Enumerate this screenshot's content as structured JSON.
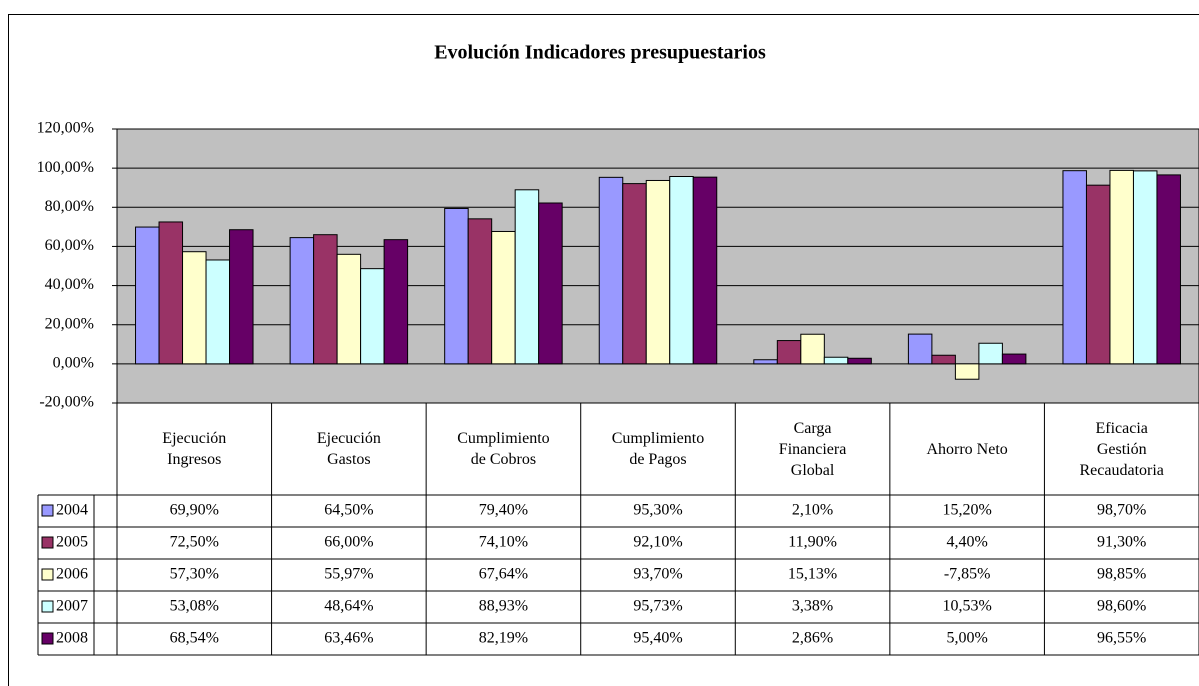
{
  "chart_data": {
    "type": "bar",
    "title": "Evolución Indicadores presupuestarios",
    "categories": [
      "Ejecución\nIngresos",
      "Ejecución\nGastos",
      "Cumplimiento\nde Cobros",
      "Cumplimiento\nde Pagos",
      "Carga\nFinanciera\nGlobal",
      "Ahorro Neto",
      "Eficacia\nGestión\nRecaudatoria"
    ],
    "series": [
      {
        "name": "2004",
        "color": "#9999ff",
        "values": [
          69.9,
          64.5,
          79.4,
          95.3,
          2.1,
          15.2,
          98.7
        ],
        "value_labels": [
          "69,90%",
          "64,50%",
          "79,40%",
          "95,30%",
          "2,10%",
          "15,20%",
          "98,70%"
        ]
      },
      {
        "name": "2005",
        "color": "#993366",
        "values": [
          72.5,
          66.0,
          74.1,
          92.1,
          11.9,
          4.4,
          91.3
        ],
        "value_labels": [
          "72,50%",
          "66,00%",
          "74,10%",
          "92,10%",
          "11,90%",
          "4,40%",
          "91,30%"
        ]
      },
      {
        "name": "2006",
        "color": "#ffffcc",
        "values": [
          57.3,
          55.97,
          67.64,
          93.7,
          15.13,
          -7.85,
          98.85
        ],
        "value_labels": [
          "57,30%",
          "55,97%",
          "67,64%",
          "93,70%",
          "15,13%",
          "-7,85%",
          "98,85%"
        ]
      },
      {
        "name": "2007",
        "color": "#ccffff",
        "values": [
          53.08,
          48.64,
          88.93,
          95.73,
          3.38,
          10.53,
          98.6
        ],
        "value_labels": [
          "53,08%",
          "48,64%",
          "88,93%",
          "95,73%",
          "3,38%",
          "10,53%",
          "98,60%"
        ]
      },
      {
        "name": "2008",
        "color": "#660066",
        "values": [
          68.54,
          63.46,
          82.19,
          95.4,
          2.86,
          5.0,
          96.55
        ],
        "value_labels": [
          "68,54%",
          "63,46%",
          "82,19%",
          "95,40%",
          "2,86%",
          "5,00%",
          "96,55%"
        ]
      }
    ],
    "ylim": [
      -20,
      120
    ],
    "yticks": [
      {
        "value": -20,
        "label": "-20,00%"
      },
      {
        "value": 0,
        "label": "0,00%"
      },
      {
        "value": 20,
        "label": "20,00%"
      },
      {
        "value": 40,
        "label": "40,00%"
      },
      {
        "value": 60,
        "label": "60,00%"
      },
      {
        "value": 80,
        "label": "80,00%"
      },
      {
        "value": 100,
        "label": "100,00%"
      },
      {
        "value": 120,
        "label": "120,00%"
      }
    ],
    "grid": true,
    "plot_background": "#c0c0c0"
  }
}
